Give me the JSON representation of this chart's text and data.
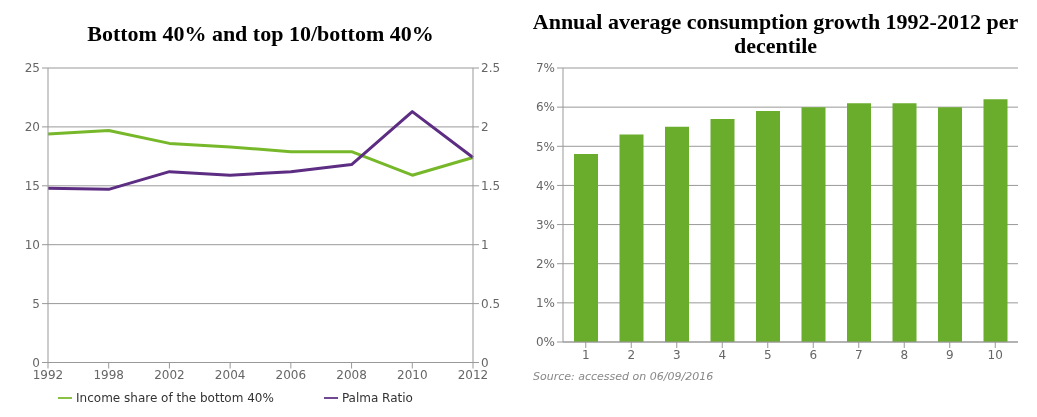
{
  "chart_data": [
    {
      "type": "line",
      "title": "Bottom 40% and top 10/bottom 40%",
      "categories": [
        "1992",
        "1998",
        "2002",
        "2004",
        "2006",
        "2008",
        "2010",
        "2012"
      ],
      "series": [
        {
          "name": "Income share of the  bottom 40%",
          "color": "#77b82a",
          "values": [
            19.4,
            19.7,
            18.6,
            18.3,
            17.9,
            17.9,
            15.9,
            17.4
          ]
        },
        {
          "name": "Palma Ratio",
          "color": "#5c2d82",
          "axis": "y2",
          "values": [
            1.48,
            1.47,
            1.62,
            1.59,
            1.62,
            1.68,
            2.13,
            1.74
          ]
        }
      ],
      "ylim": [
        0,
        25
      ],
      "yticks": [
        0,
        5,
        10,
        15,
        20,
        25
      ],
      "y2lim": [
        0,
        2.5
      ],
      "y2ticks": [
        0,
        0.5,
        1,
        1.5,
        2,
        2.5
      ],
      "grid": "y",
      "legend": "bottom",
      "marker": "none",
      "line_style": "solid"
    },
    {
      "type": "bar",
      "title": "Annual average consumption growth 1992-2012 per decentile",
      "categories": [
        "1",
        "2",
        "3",
        "4",
        "5",
        "6",
        "7",
        "8",
        "9",
        "10"
      ],
      "values": [
        4.8,
        5.3,
        5.5,
        5.7,
        5.9,
        6.0,
        6.1,
        6.1,
        6.0,
        6.2
      ],
      "color": "#6aac2c",
      "ylim": [
        0,
        7
      ],
      "yticks": [
        {
          "value": 0,
          "label": "0%"
        },
        {
          "value": 1,
          "label": "1%"
        },
        {
          "value": 2,
          "label": "2%"
        },
        {
          "value": 3,
          "label": "3%"
        },
        {
          "value": 4,
          "label": "4%"
        },
        {
          "value": 5,
          "label": "5%"
        },
        {
          "value": 6,
          "label": "6%"
        },
        {
          "value": 7,
          "label": "7%"
        }
      ],
      "grid": "y",
      "annotations": [
        "Source: accessed on 06/09/2016"
      ]
    }
  ]
}
